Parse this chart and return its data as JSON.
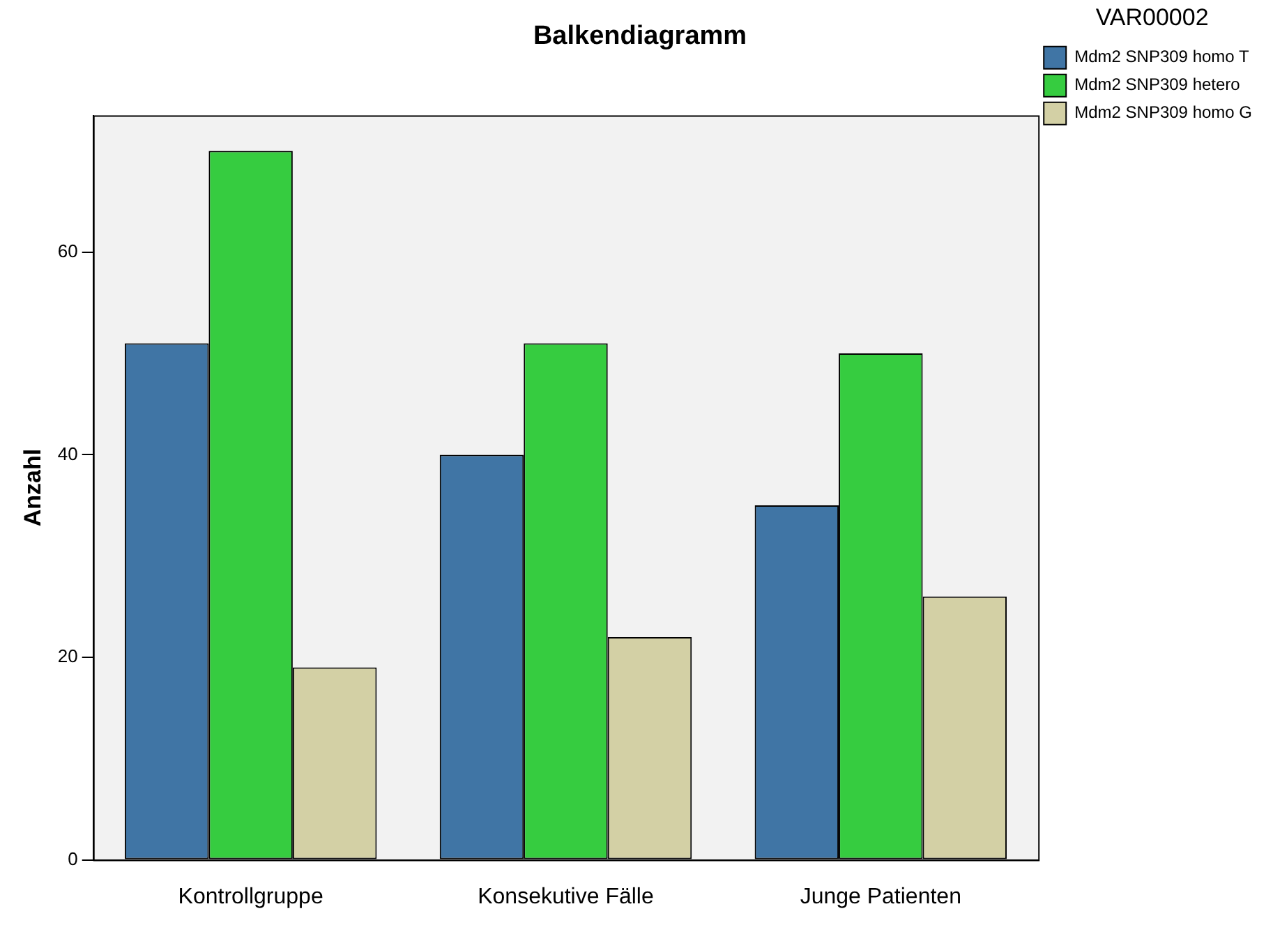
{
  "chart_data": {
    "type": "bar",
    "title": "Balkendiagramm",
    "ylabel": "Anzahl",
    "legend_title": "VAR00002",
    "categories": [
      "Kontrollgruppe",
      "Konsekutive Fälle",
      "Junge Patienten"
    ],
    "series": [
      {
        "name": "Mdm2 SNP309 homo T",
        "color": "#4075a5",
        "values": [
          51,
          40,
          35
        ]
      },
      {
        "name": "Mdm2 SNP309 hetero",
        "color": "#36cc40",
        "values": [
          70,
          51,
          50
        ]
      },
      {
        "name": "Mdm2 SNP309 homo G",
        "color": "#d3d0a5",
        "values": [
          19,
          22,
          26
        ]
      }
    ],
    "ylim": [
      0,
      73.5
    ],
    "yticks": [
      0,
      20,
      40,
      60
    ],
    "grid": false,
    "legend": "top right"
  }
}
